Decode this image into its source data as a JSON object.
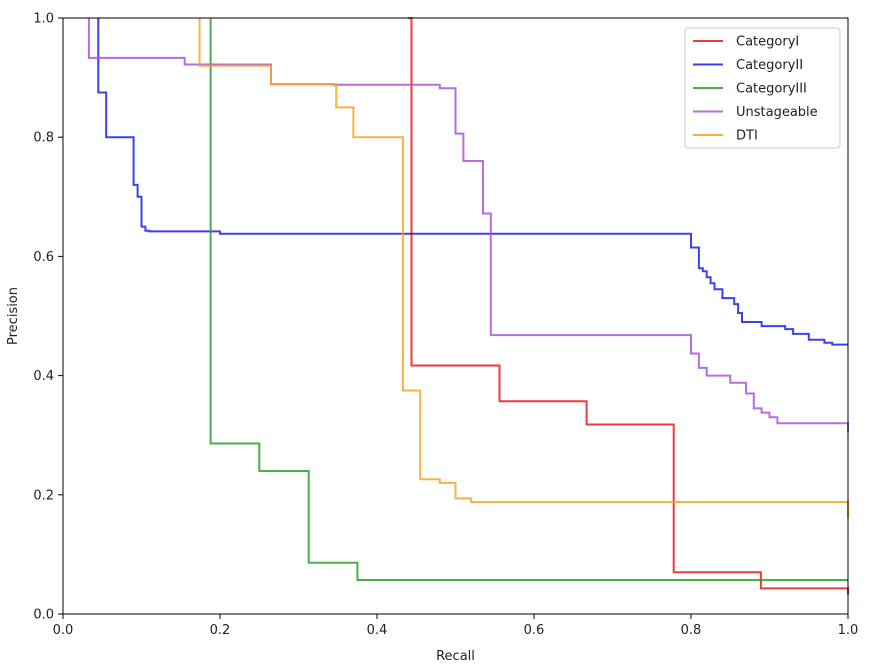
{
  "chart_data": {
    "type": "line",
    "title": "",
    "xlabel": "Recall",
    "ylabel": "Precision",
    "xlim": [
      0.0,
      1.0
    ],
    "ylim": [
      0.0,
      1.0
    ],
    "xticks": [
      0.0,
      0.2,
      0.4,
      0.6,
      0.8,
      1.0
    ],
    "yticks": [
      0.0,
      0.2,
      0.4,
      0.6,
      0.8,
      1.0
    ],
    "xtick_labels": [
      "0.0",
      "0.2",
      "0.4",
      "0.6",
      "0.8",
      "1.0"
    ],
    "ytick_labels": [
      "0.0",
      "0.2",
      "0.4",
      "0.6",
      "0.8",
      "1.0"
    ],
    "grid": false,
    "legend_position": "top-right",
    "series": [
      {
        "name": "CategoryI",
        "color": "#e41a1c",
        "x": [
          0.44,
          0.44,
          0.444,
          0.444,
          0.556,
          0.556,
          0.667,
          0.667,
          0.778,
          0.778,
          0.889,
          0.889,
          1.0,
          1.0
        ],
        "y": [
          1.0,
          1.0,
          1.0,
          0.417,
          0.417,
          0.357,
          0.357,
          0.318,
          0.318,
          0.07,
          0.07,
          0.043,
          0.043,
          0.033
        ]
      },
      {
        "name": "CategoryII",
        "color": "#1f1fe6",
        "x": [
          0.045,
          0.045,
          0.045,
          0.055,
          0.055,
          0.09,
          0.09,
          0.095,
          0.095,
          0.1,
          0.1,
          0.105,
          0.105,
          0.11,
          0.11,
          0.2,
          0.2,
          0.8,
          0.8,
          0.81,
          0.81,
          0.815,
          0.815,
          0.82,
          0.82,
          0.825,
          0.825,
          0.83,
          0.83,
          0.84,
          0.84,
          0.855,
          0.855,
          0.86,
          0.86,
          0.865,
          0.865,
          0.89,
          0.89,
          0.92,
          0.92,
          0.93,
          0.93,
          0.95,
          0.95,
          0.97,
          0.97,
          0.98,
          0.98,
          1.0
        ],
        "y": [
          1.0,
          1.0,
          0.875,
          0.875,
          0.8,
          0.8,
          0.72,
          0.72,
          0.7,
          0.7,
          0.65,
          0.65,
          0.643,
          0.643,
          0.642,
          0.642,
          0.638,
          0.638,
          0.615,
          0.615,
          0.58,
          0.58,
          0.575,
          0.575,
          0.565,
          0.565,
          0.555,
          0.555,
          0.545,
          0.545,
          0.53,
          0.53,
          0.52,
          0.52,
          0.505,
          0.505,
          0.49,
          0.49,
          0.483,
          0.483,
          0.478,
          0.478,
          0.47,
          0.47,
          0.46,
          0.46,
          0.455,
          0.455,
          0.452,
          0.452
        ]
      },
      {
        "name": "CategoryIII",
        "color": "#2ca02c",
        "x": [
          0.188,
          0.188,
          0.188,
          0.25,
          0.25,
          0.313,
          0.313,
          0.375,
          0.375,
          1.0
        ],
        "y": [
          1.0,
          1.0,
          0.286,
          0.286,
          0.24,
          0.24,
          0.086,
          0.086,
          0.057,
          0.057
        ]
      },
      {
        "name": "Unstageable",
        "color": "#a855d6",
        "x": [
          0.033,
          0.033,
          0.155,
          0.155,
          0.265,
          0.265,
          0.345,
          0.345,
          0.48,
          0.48,
          0.5,
          0.5,
          0.51,
          0.51,
          0.52,
          0.52,
          0.535,
          0.535,
          0.545,
          0.545,
          0.8,
          0.8,
          0.81,
          0.81,
          0.82,
          0.82,
          0.83,
          0.83,
          0.85,
          0.85,
          0.87,
          0.87,
          0.88,
          0.88,
          0.89,
          0.89,
          0.9,
          0.9,
          0.91,
          0.91,
          0.92,
          0.92,
          1.0,
          1.0
        ],
        "y": [
          1.0,
          0.933,
          0.933,
          0.922,
          0.922,
          0.889,
          0.889,
          0.888,
          0.888,
          0.882,
          0.882,
          0.806,
          0.806,
          0.76,
          0.76,
          0.76,
          0.76,
          0.672,
          0.672,
          0.468,
          0.468,
          0.437,
          0.437,
          0.413,
          0.413,
          0.4,
          0.4,
          0.4,
          0.4,
          0.388,
          0.388,
          0.37,
          0.37,
          0.345,
          0.345,
          0.338,
          0.338,
          0.33,
          0.33,
          0.32,
          0.32,
          0.32,
          0.32,
          0.305
        ]
      },
      {
        "name": "DTI",
        "color": "#f5a623",
        "x": [
          0.174,
          0.174,
          0.265,
          0.265,
          0.348,
          0.348,
          0.37,
          0.37,
          0.433,
          0.433,
          0.455,
          0.455,
          0.48,
          0.48,
          0.5,
          0.5,
          0.52,
          0.52,
          1.0,
          1.0
        ],
        "y": [
          1.0,
          0.92,
          0.92,
          0.889,
          0.889,
          0.85,
          0.85,
          0.8,
          0.8,
          0.375,
          0.375,
          0.226,
          0.226,
          0.22,
          0.22,
          0.194,
          0.194,
          0.188,
          0.188,
          0.16
        ]
      }
    ]
  }
}
